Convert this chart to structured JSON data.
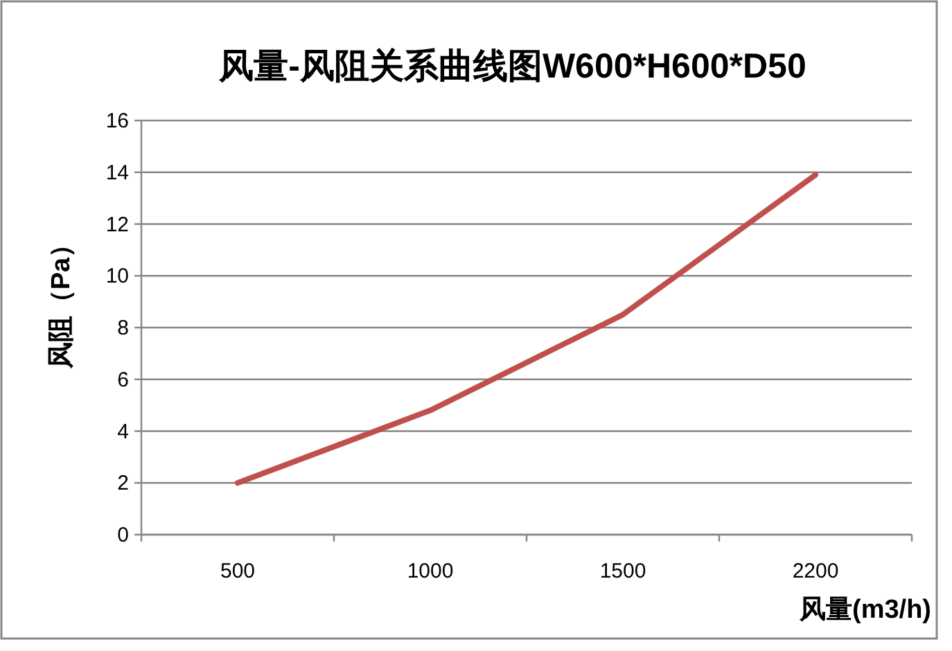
{
  "chart_data": {
    "type": "line",
    "title": "风量-风阻关系曲线图W600*H600*D50",
    "xlabel": "风量(m3/h)",
    "ylabel": "风阻（Pa）",
    "categories": [
      "500",
      "1000",
      "1500",
      "2200"
    ],
    "series": [
      {
        "color": "#c0504d",
        "values": [
          2.0,
          4.8,
          8.5,
          13.9
        ]
      }
    ],
    "ylim": [
      0,
      16
    ],
    "yticks": [
      0,
      2,
      4,
      6,
      8,
      10,
      12,
      14,
      16
    ],
    "grid": "y"
  }
}
